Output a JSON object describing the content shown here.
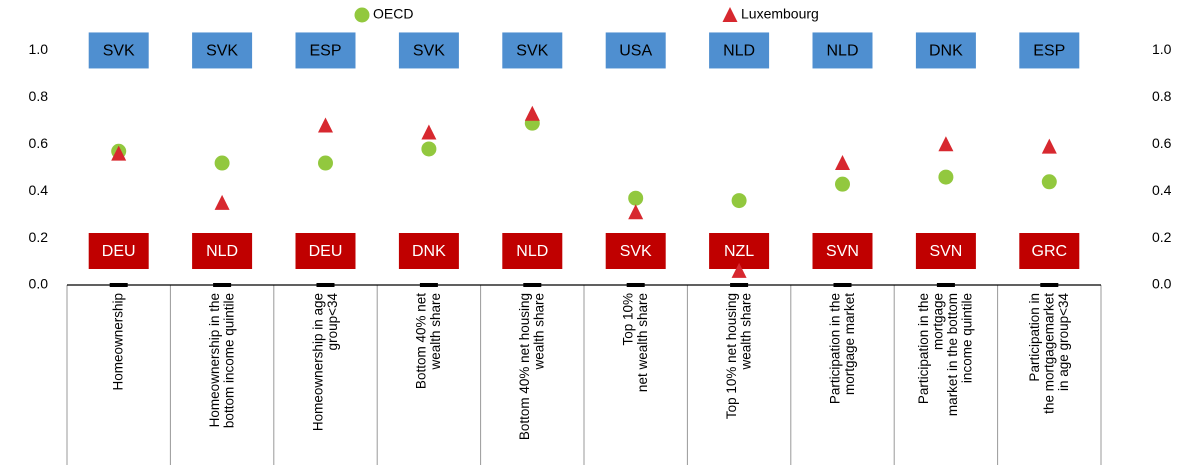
{
  "chart_data": {
    "type": "scatter",
    "categories": [
      "Homeownership",
      "Homeownership in the\nbottom income quintile",
      "Homeownership in age\ngroup<34",
      "Bottom 40% net\nwealth share",
      "Bottom 40% net housing\nwealth share",
      "Top 10%\nnet wealth share",
      "Top 10% net housing\nwealth share",
      "Participation in the\nmortgage market",
      "Participation in the\nmortgage\nmarket in the bottom\nincome quintile",
      "Participation in\nthe mortgagemarket\nin age group<34"
    ],
    "series": [
      {
        "name": "OECD",
        "color": "#92c83e",
        "marker": "circle",
        "values": [
          0.57,
          0.52,
          0.52,
          0.58,
          0.69,
          0.37,
          0.36,
          0.43,
          0.46,
          0.44
        ]
      },
      {
        "name": "Luxembourg",
        "color": "#d7282f",
        "marker": "triangle",
        "values": [
          0.56,
          0.35,
          0.68,
          0.65,
          0.73,
          0.31,
          0.06,
          0.52,
          0.6,
          0.59
        ]
      }
    ],
    "max_labels": [
      "SVK",
      "SVK",
      "ESP",
      "SVK",
      "SVK",
      "USA",
      "NLD",
      "NLD",
      "DNK",
      "ESP"
    ],
    "min_labels": [
      "DEU",
      "NLD",
      "DEU",
      "DNK",
      "NLD",
      "SVK",
      "NZL",
      "SVN",
      "SVN",
      "GRC"
    ],
    "max_color": "#4f8fd0",
    "min_color": "#c00000",
    "ylim": [
      0,
      1.1
    ],
    "yticks": [
      {
        "value": 0,
        "label": "0.0"
      },
      0.2,
      0.4,
      0.6,
      0.8,
      {
        "value": 1,
        "label": "1.0"
      }
    ],
    "y2lim": [
      0,
      1.1
    ],
    "y2ticks": [
      {
        "value": 0,
        "label": "0.0"
      },
      0.2,
      0.4,
      0.6,
      0.8,
      {
        "value": 1,
        "label": "1.0"
      }
    ],
    "grid": false
  }
}
